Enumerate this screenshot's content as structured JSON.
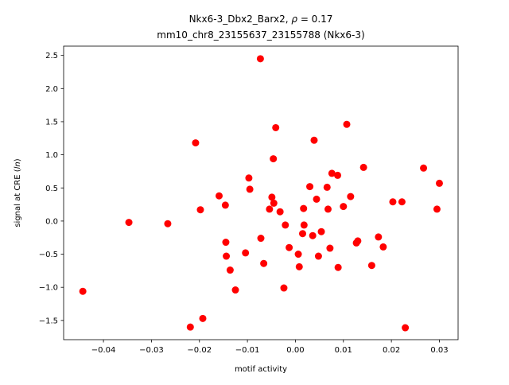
{
  "chart_data": {
    "type": "scatter",
    "title": {
      "line1_prefix": "Nkx6-3_Dbx2_Barx2, ",
      "line1_rho_symbol": "ρ",
      "line1_rho_value": " = 0.17",
      "line2": "mm10_chr8_23155637_23155788 (Nkx6-3)"
    },
    "xlabel": "motif activity",
    "ylabel": {
      "prefix": "signal at CRE (",
      "italic": "ln",
      "suffix": ")"
    },
    "xlim": [
      -0.0483,
      0.0339
    ],
    "ylim": [
      -1.79,
      2.64
    ],
    "xticks": [
      {
        "value": -0.04,
        "label": "−0.04"
      },
      {
        "value": -0.03,
        "label": "−0.03"
      },
      {
        "value": -0.02,
        "label": "−0.02"
      },
      {
        "value": -0.01,
        "label": "−0.01"
      },
      {
        "value": 0.0,
        "label": "0.00"
      },
      {
        "value": 0.01,
        "label": "0.01"
      },
      {
        "value": 0.02,
        "label": "0.02"
      },
      {
        "value": 0.03,
        "label": "0.03"
      }
    ],
    "yticks": [
      {
        "value": -1.5,
        "label": "−1.5"
      },
      {
        "value": -1.0,
        "label": "−1.0"
      },
      {
        "value": -0.5,
        "label": "−0.5"
      },
      {
        "value": 0.0,
        "label": "0.0"
      },
      {
        "value": 0.5,
        "label": "0.5"
      },
      {
        "value": 1.0,
        "label": "1.0"
      },
      {
        "value": 1.5,
        "label": "1.5"
      },
      {
        "value": 2.0,
        "label": "2.0"
      },
      {
        "value": 2.5,
        "label": "2.5"
      }
    ],
    "grid": false,
    "marker_color": "#ff0000",
    "points": [
      {
        "x": -0.0443,
        "y": -1.06
      },
      {
        "x": -0.0347,
        "y": -0.02
      },
      {
        "x": -0.0266,
        "y": -0.04
      },
      {
        "x": -0.0219,
        "y": -1.6
      },
      {
        "x": -0.0208,
        "y": 1.18
      },
      {
        "x": -0.0198,
        "y": 0.17
      },
      {
        "x": -0.0193,
        "y": -1.47
      },
      {
        "x": -0.0159,
        "y": 0.38
      },
      {
        "x": -0.0146,
        "y": 0.24
      },
      {
        "x": -0.0145,
        "y": -0.32
      },
      {
        "x": -0.0144,
        "y": -0.53
      },
      {
        "x": -0.0136,
        "y": -0.74
      },
      {
        "x": -0.0125,
        "y": -1.04
      },
      {
        "x": -0.0104,
        "y": -0.48
      },
      {
        "x": -0.0097,
        "y": 0.65
      },
      {
        "x": -0.0095,
        "y": 0.48
      },
      {
        "x": -0.0073,
        "y": 2.45
      },
      {
        "x": -0.0072,
        "y": -0.26
      },
      {
        "x": -0.0066,
        "y": -0.64
      },
      {
        "x": -0.0054,
        "y": 0.18
      },
      {
        "x": -0.0049,
        "y": 0.36
      },
      {
        "x": -0.0046,
        "y": 0.94
      },
      {
        "x": -0.0045,
        "y": 0.27
      },
      {
        "x": -0.0041,
        "y": 1.41
      },
      {
        "x": -0.0032,
        "y": 0.14
      },
      {
        "x": -0.0024,
        "y": -1.01
      },
      {
        "x": -0.0021,
        "y": -0.06
      },
      {
        "x": -0.0013,
        "y": -0.4
      },
      {
        "x": 0.0006,
        "y": -0.5
      },
      {
        "x": 0.0008,
        "y": -0.69
      },
      {
        "x": 0.0015,
        "y": -0.19
      },
      {
        "x": 0.0017,
        "y": 0.19
      },
      {
        "x": 0.0018,
        "y": -0.06
      },
      {
        "x": 0.003,
        "y": 0.52
      },
      {
        "x": 0.0036,
        "y": -0.22
      },
      {
        "x": 0.0039,
        "y": 1.22
      },
      {
        "x": 0.0044,
        "y": 0.33
      },
      {
        "x": 0.0048,
        "y": -0.53
      },
      {
        "x": 0.0054,
        "y": -0.16
      },
      {
        "x": 0.0066,
        "y": 0.51
      },
      {
        "x": 0.0068,
        "y": 0.18
      },
      {
        "x": 0.0072,
        "y": -0.41
      },
      {
        "x": 0.0076,
        "y": 0.72
      },
      {
        "x": 0.0088,
        "y": 0.69
      },
      {
        "x": 0.0089,
        "y": -0.7
      },
      {
        "x": 0.01,
        "y": 0.22
      },
      {
        "x": 0.0107,
        "y": 1.46
      },
      {
        "x": 0.0115,
        "y": 0.37
      },
      {
        "x": 0.0127,
        "y": -0.33
      },
      {
        "x": 0.013,
        "y": -0.3
      },
      {
        "x": 0.0142,
        "y": 0.81
      },
      {
        "x": 0.0159,
        "y": -0.67
      },
      {
        "x": 0.0173,
        "y": -0.24
      },
      {
        "x": 0.0183,
        "y": -0.39
      },
      {
        "x": 0.0203,
        "y": 0.29
      },
      {
        "x": 0.0222,
        "y": 0.29
      },
      {
        "x": 0.0229,
        "y": -1.61
      },
      {
        "x": 0.0267,
        "y": 0.8
      },
      {
        "x": 0.0295,
        "y": 0.18
      },
      {
        "x": 0.03,
        "y": 0.57
      }
    ]
  }
}
